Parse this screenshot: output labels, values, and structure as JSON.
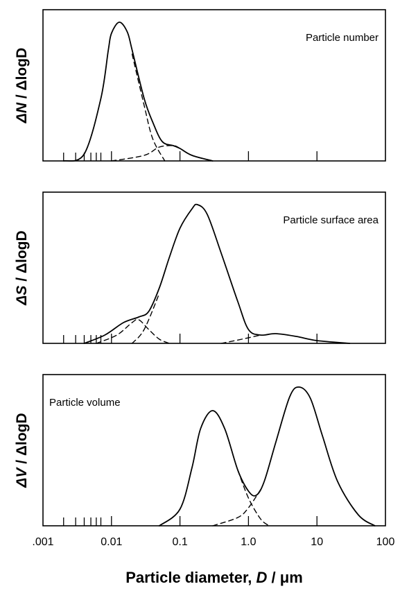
{
  "chart_data": [
    {
      "type": "line",
      "ylabel_main": "ΔN",
      "ylabel_rest": " / ΔlogD",
      "annotation": "Particle number",
      "annotation_pos": "top-right",
      "x_scale": "log",
      "xlim": [
        0.001,
        100
      ],
      "series": [
        {
          "values": [
            [
              0.002,
              0.0
            ],
            [
              0.004,
              0.05
            ],
            [
              0.007,
              0.45
            ],
            [
              0.009,
              0.8
            ],
            [
              0.01,
              0.92
            ],
            [
              0.013,
              1.0
            ],
            [
              0.017,
              0.93
            ],
            [
              0.02,
              0.8
            ],
            [
              0.03,
              0.45
            ],
            [
              0.04,
              0.28
            ],
            [
              0.055,
              0.14
            ],
            [
              0.08,
              0.11
            ],
            [
              0.1,
              0.09
            ],
            [
              0.15,
              0.04
            ],
            [
              0.3,
              0.0
            ]
          ]
        },
        {
          "dashed": true,
          "values": [
            [
              0.02,
              0.77
            ],
            [
              0.03,
              0.4
            ],
            [
              0.04,
              0.16
            ],
            [
              0.06,
              0.0
            ]
          ]
        },
        {
          "dashed": true,
          "values": [
            [
              0.01,
              0.0
            ],
            [
              0.03,
              0.04
            ],
            [
              0.05,
              0.1
            ],
            [
              0.08,
              0.11
            ],
            [
              0.1,
              0.09
            ],
            [
              0.15,
              0.04
            ],
            [
              0.3,
              0.0
            ]
          ]
        }
      ]
    },
    {
      "type": "line",
      "ylabel_main": "ΔS",
      "ylabel_rest": " / ΔlogD",
      "annotation": "Particle surface area",
      "annotation_pos": "top-right",
      "x_scale": "log",
      "xlim": [
        0.001,
        100
      ],
      "series": [
        {
          "values": [
            [
              0.004,
              0.0
            ],
            [
              0.008,
              0.06
            ],
            [
              0.015,
              0.15
            ],
            [
              0.025,
              0.19
            ],
            [
              0.035,
              0.23
            ],
            [
              0.05,
              0.4
            ],
            [
              0.07,
              0.62
            ],
            [
              0.1,
              0.83
            ],
            [
              0.15,
              0.97
            ],
            [
              0.18,
              1.0
            ],
            [
              0.25,
              0.93
            ],
            [
              0.4,
              0.65
            ],
            [
              0.7,
              0.3
            ],
            [
              1.0,
              0.1
            ],
            [
              1.5,
              0.06
            ],
            [
              2.5,
              0.07
            ],
            [
              5.0,
              0.05
            ],
            [
              10.0,
              0.02
            ],
            [
              30.0,
              0.0
            ]
          ]
        },
        {
          "dashed": true,
          "values": [
            [
              0.006,
              0.0
            ],
            [
              0.012,
              0.06
            ],
            [
              0.02,
              0.15
            ],
            [
              0.025,
              0.17
            ],
            [
              0.035,
              0.1
            ],
            [
              0.05,
              0.03
            ],
            [
              0.07,
              0.0
            ]
          ]
        },
        {
          "dashed": true,
          "values": [
            [
              0.02,
              0.0
            ],
            [
              0.03,
              0.1
            ],
            [
              0.05,
              0.36
            ]
          ]
        },
        {
          "dashed": true,
          "values": [
            [
              0.4,
              0.0
            ],
            [
              0.8,
              0.03
            ],
            [
              1.5,
              0.06
            ]
          ]
        }
      ]
    },
    {
      "type": "line",
      "ylabel_main": "ΔV",
      "ylabel_rest": " / ΔlogD",
      "annotation": "Particle volume",
      "annotation_pos": "top-left",
      "x_scale": "log",
      "xlim": [
        0.001,
        100
      ],
      "xticks": [
        0.001,
        0.01,
        0.1,
        1.0,
        10,
        100
      ],
      "xtick_labels": [
        ".001",
        "0.01",
        "0.1",
        "1.0",
        "10",
        "100"
      ],
      "xlabel_main": "Particle diameter, ",
      "xlabel_var": "D",
      "xlabel_unit": " / μm",
      "series": [
        {
          "values": [
            [
              0.05,
              0.0
            ],
            [
              0.1,
              0.12
            ],
            [
              0.15,
              0.42
            ],
            [
              0.2,
              0.7
            ],
            [
              0.3,
              0.83
            ],
            [
              0.45,
              0.7
            ],
            [
              0.7,
              0.4
            ],
            [
              1.0,
              0.25
            ],
            [
              1.3,
              0.22
            ],
            [
              1.7,
              0.32
            ],
            [
              2.5,
              0.6
            ],
            [
              4.0,
              0.93
            ],
            [
              5.5,
              1.0
            ],
            [
              8.0,
              0.92
            ],
            [
              12.0,
              0.65
            ],
            [
              20.0,
              0.32
            ],
            [
              40.0,
              0.08
            ],
            [
              70.0,
              0.0
            ]
          ]
        },
        {
          "dashed": true,
          "values": [
            [
              0.7,
              0.4
            ],
            [
              1.0,
              0.2
            ],
            [
              1.5,
              0.05
            ],
            [
              2.0,
              0.0
            ]
          ]
        },
        {
          "dashed": true,
          "values": [
            [
              0.3,
              0.0
            ],
            [
              0.7,
              0.06
            ],
            [
              1.0,
              0.13
            ],
            [
              1.5,
              0.26
            ]
          ]
        }
      ]
    }
  ]
}
